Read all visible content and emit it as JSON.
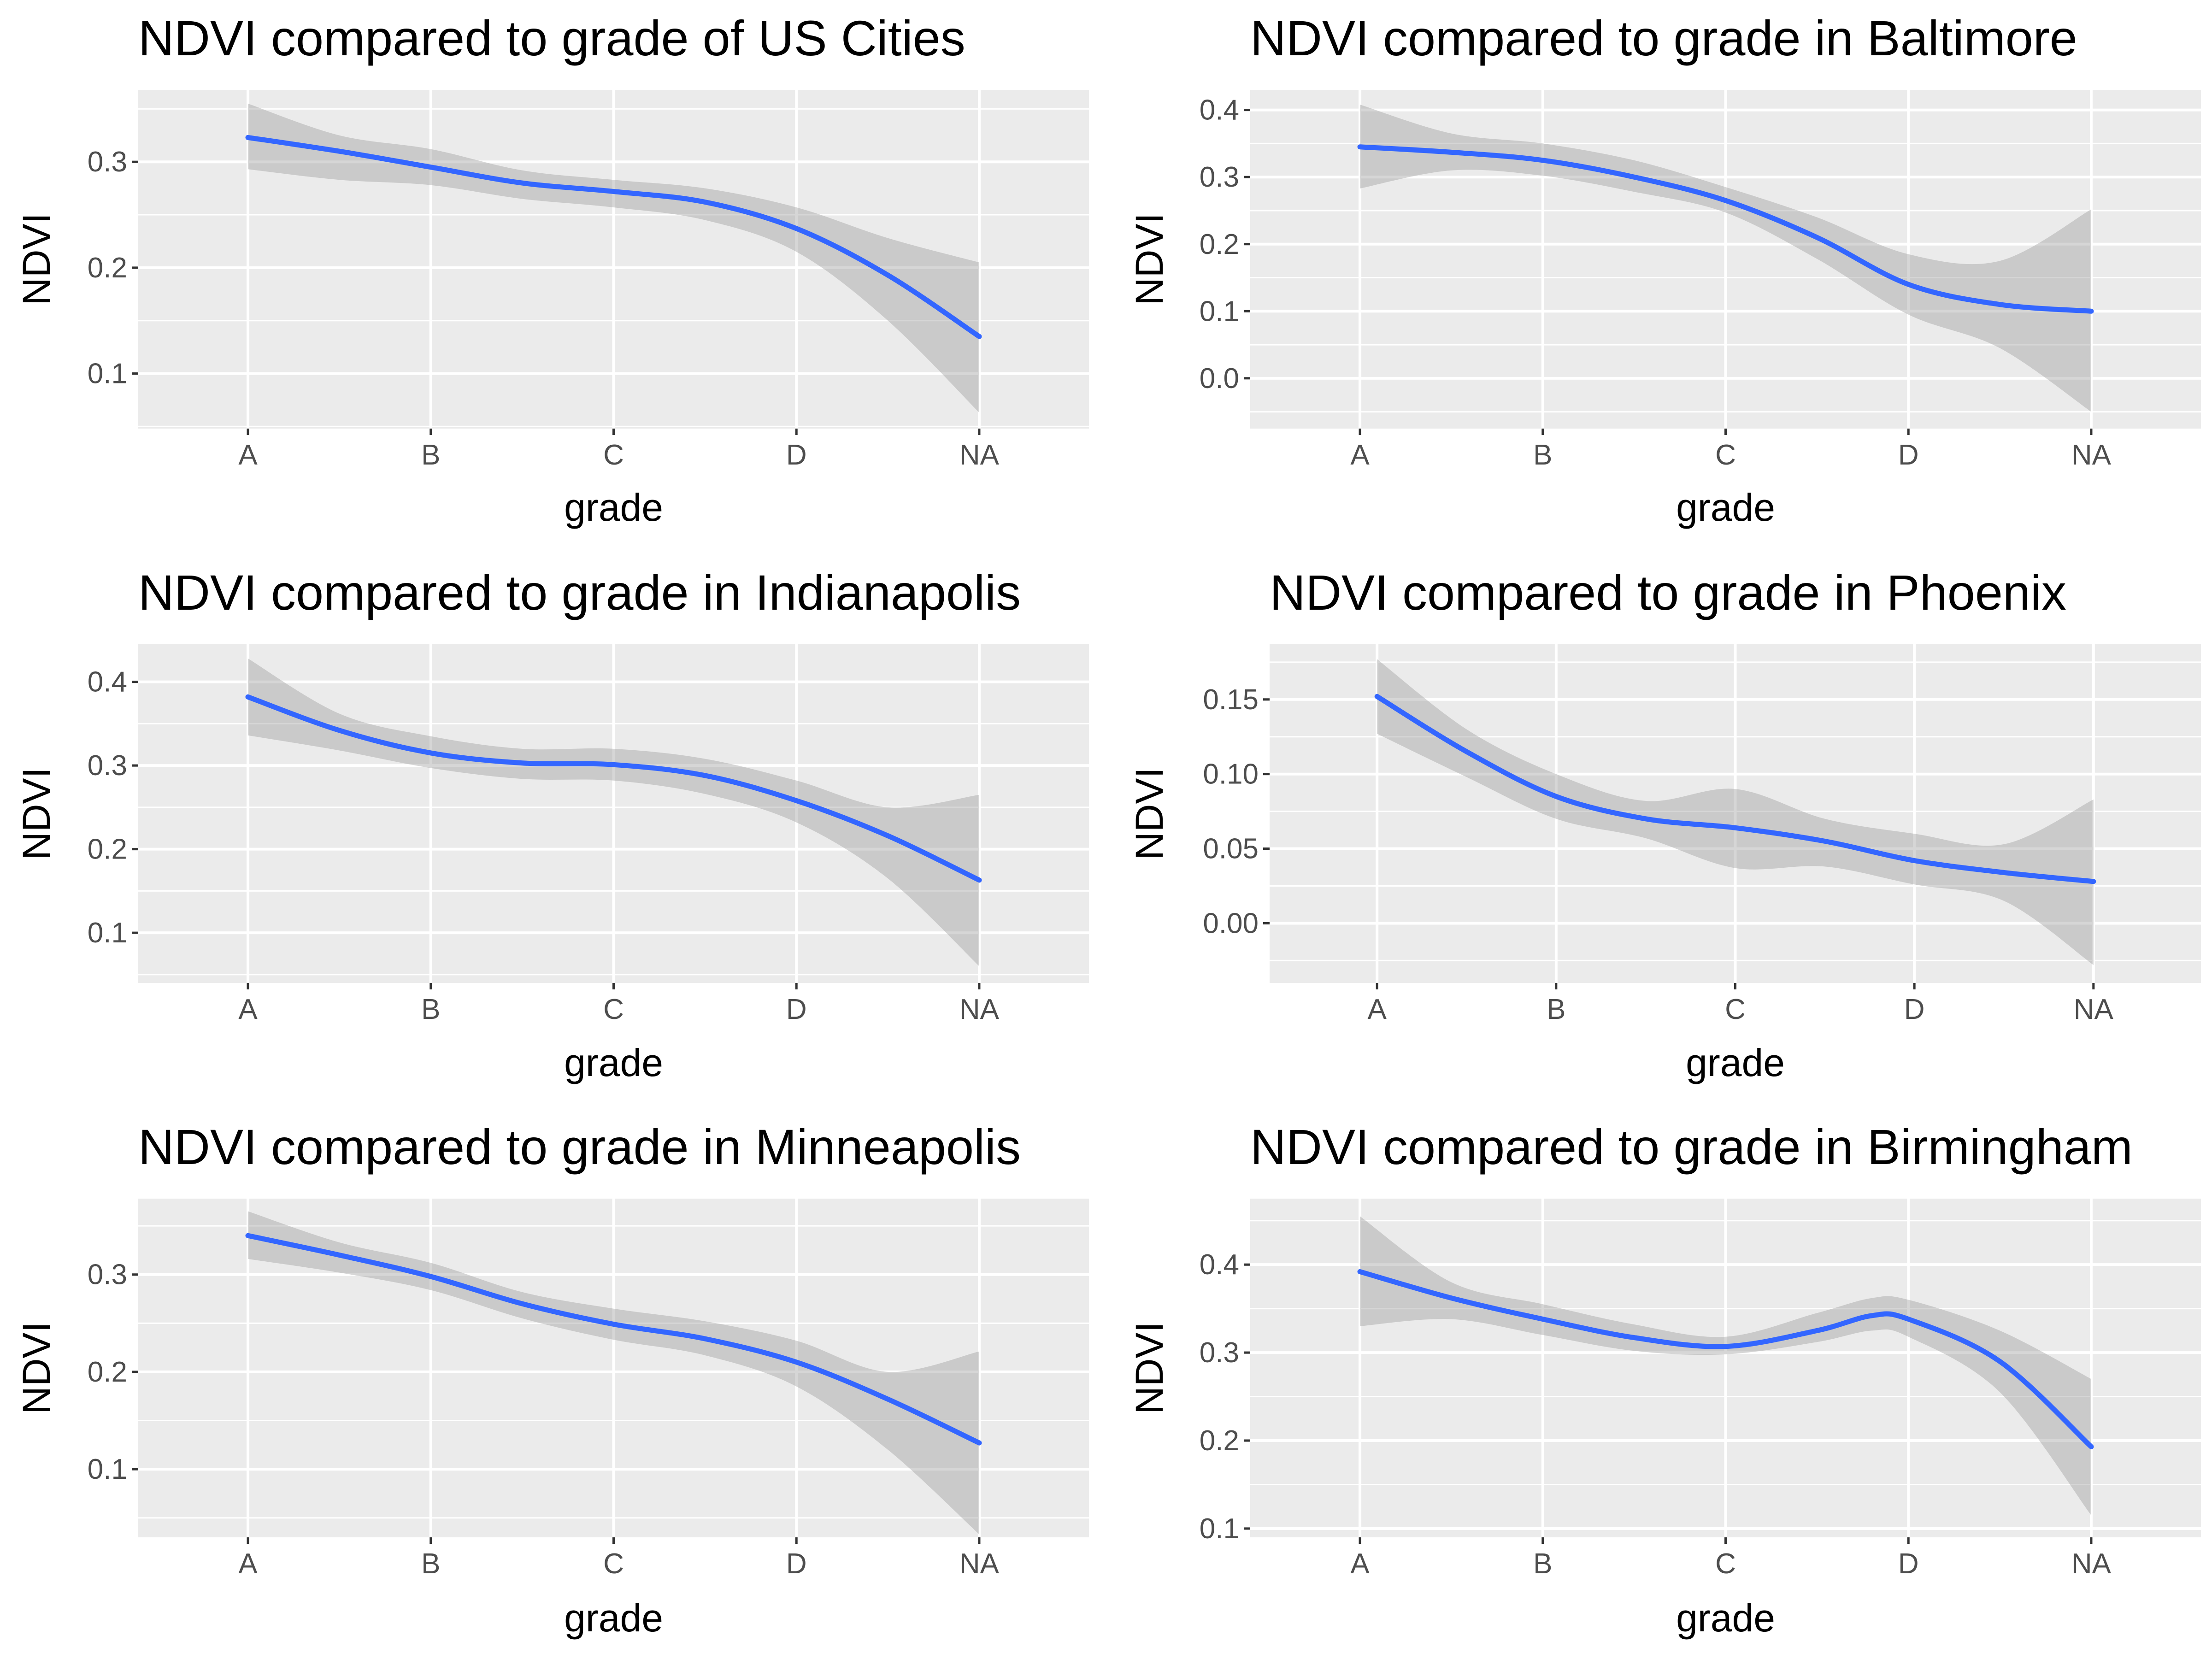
{
  "colors": {
    "panel_background": "#EBEBEB",
    "grid_major": "#FFFFFF",
    "smooth_line": "#3366FF",
    "confidence_band": "#999999",
    "tick_label": "#4D4D4D",
    "text": "#000000"
  },
  "chart_data": [
    {
      "type": "line",
      "title": "NDVI compared to grade of US Cities",
      "xlabel": "grade",
      "ylabel": "NDVI",
      "categories": [
        "A",
        "B",
        "C",
        "D",
        "NA"
      ],
      "y_ticks": [
        0.1,
        0.2,
        0.3
      ],
      "ylim": [
        0.048,
        0.368
      ],
      "series": [
        {
          "x": [
            1,
            1.5,
            2,
            2.5,
            3,
            3.5,
            4,
            4.5,
            5
          ],
          "values": [
            0.323,
            0.31,
            0.295,
            0.28,
            0.272,
            0.262,
            0.237,
            0.193,
            0.135
          ],
          "lower": [
            0.293,
            0.283,
            0.278,
            0.265,
            0.257,
            0.245,
            0.215,
            0.15,
            0.063
          ],
          "upper": [
            0.355,
            0.325,
            0.312,
            0.292,
            0.283,
            0.275,
            0.257,
            0.228,
            0.205
          ]
        }
      ]
    },
    {
      "type": "line",
      "title": "NDVI compared to grade in Baltimore",
      "xlabel": "grade",
      "ylabel": "NDVI",
      "categories": [
        "A",
        "B",
        "C",
        "D",
        "NA"
      ],
      "y_ticks": [
        0.0,
        0.1,
        0.2,
        0.3,
        0.4
      ],
      "ylim": [
        -0.075,
        0.43
      ],
      "series": [
        {
          "x": [
            1,
            1.5,
            2,
            2.5,
            3,
            3.5,
            4,
            4.5,
            5
          ],
          "values": [
            0.345,
            0.337,
            0.325,
            0.3,
            0.265,
            0.21,
            0.14,
            0.11,
            0.1
          ],
          "lower": [
            0.283,
            0.31,
            0.302,
            0.278,
            0.247,
            0.178,
            0.095,
            0.045,
            -0.05
          ],
          "upper": [
            0.408,
            0.365,
            0.35,
            0.325,
            0.285,
            0.24,
            0.185,
            0.175,
            0.252
          ]
        }
      ]
    },
    {
      "type": "line",
      "title": "NDVI compared to grade in Indianapolis",
      "xlabel": "grade",
      "ylabel": "NDVI",
      "categories": [
        "A",
        "B",
        "C",
        "D",
        "NA"
      ],
      "y_ticks": [
        0.1,
        0.2,
        0.3,
        0.4
      ],
      "ylim": [
        0.04,
        0.445
      ],
      "series": [
        {
          "x": [
            1,
            1.5,
            2,
            2.5,
            3,
            3.5,
            4,
            4.5,
            5
          ],
          "values": [
            0.382,
            0.342,
            0.315,
            0.303,
            0.301,
            0.288,
            0.258,
            0.216,
            0.163
          ],
          "lower": [
            0.336,
            0.318,
            0.297,
            0.284,
            0.282,
            0.266,
            0.232,
            0.165,
            0.06
          ],
          "upper": [
            0.428,
            0.362,
            0.335,
            0.32,
            0.32,
            0.308,
            0.282,
            0.25,
            0.265
          ]
        }
      ]
    },
    {
      "type": "line",
      "title": "NDVI compared to grade in Phoenix",
      "xlabel": "grade",
      "ylabel": "NDVI",
      "categories": [
        "A",
        "B",
        "C",
        "D",
        "NA"
      ],
      "y_ticks": [
        0.0,
        0.05,
        0.1,
        0.15
      ],
      "ylim": [
        -0.04,
        0.187
      ],
      "series": [
        {
          "x": [
            1,
            1.5,
            2,
            2.5,
            3,
            3.5,
            4,
            4.5,
            5
          ],
          "values": [
            0.152,
            0.115,
            0.085,
            0.07,
            0.064,
            0.055,
            0.042,
            0.034,
            0.028
          ],
          "lower": [
            0.127,
            0.098,
            0.07,
            0.057,
            0.037,
            0.038,
            0.026,
            0.015,
            -0.028
          ],
          "upper": [
            0.177,
            0.13,
            0.1,
            0.082,
            0.09,
            0.07,
            0.06,
            0.053,
            0.083
          ]
        }
      ]
    },
    {
      "type": "line",
      "title": "NDVI compared to grade in Minneapolis",
      "xlabel": "grade",
      "ylabel": "NDVI",
      "categories": [
        "A",
        "B",
        "C",
        "D",
        "NA"
      ],
      "y_ticks": [
        0.1,
        0.2,
        0.3
      ],
      "ylim": [
        0.03,
        0.378
      ],
      "series": [
        {
          "x": [
            1,
            1.5,
            2,
            2.5,
            3,
            3.5,
            4,
            4.5,
            5
          ],
          "values": [
            0.34,
            0.32,
            0.298,
            0.27,
            0.249,
            0.234,
            0.21,
            0.172,
            0.127
          ],
          "lower": [
            0.316,
            0.302,
            0.284,
            0.255,
            0.233,
            0.217,
            0.185,
            0.12,
            0.033
          ],
          "upper": [
            0.365,
            0.333,
            0.312,
            0.282,
            0.265,
            0.252,
            0.232,
            0.2,
            0.221
          ]
        }
      ]
    },
    {
      "type": "line",
      "title": "NDVI compared to grade in Birmingham",
      "xlabel": "grade",
      "ylabel": "NDVI",
      "categories": [
        "A",
        "B",
        "C",
        "D",
        "NA"
      ],
      "y_ticks": [
        0.1,
        0.2,
        0.3,
        0.4
      ],
      "ylim": [
        0.09,
        0.475
      ],
      "series": [
        {
          "x": [
            1,
            1.5,
            2,
            2.5,
            3,
            3.5,
            3.8,
            4,
            4.5,
            5
          ],
          "values": [
            0.392,
            0.362,
            0.338,
            0.317,
            0.307,
            0.325,
            0.342,
            0.338,
            0.29,
            0.193
          ],
          "lower": [
            0.33,
            0.338,
            0.32,
            0.302,
            0.298,
            0.312,
            0.325,
            0.318,
            0.255,
            0.115
          ],
          "upper": [
            0.455,
            0.38,
            0.355,
            0.332,
            0.318,
            0.345,
            0.362,
            0.36,
            0.325,
            0.27
          ]
        }
      ]
    }
  ]
}
